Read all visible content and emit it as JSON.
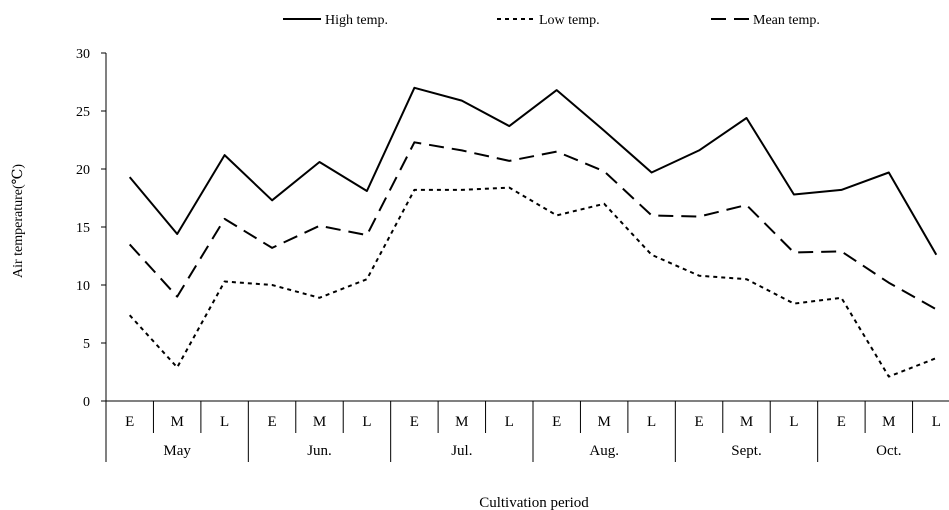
{
  "chart_data": {
    "type": "line",
    "xlabel": "Cultivation period",
    "ylabel": "Air temperature(℃)",
    "ylim": [
      0,
      30
    ],
    "yticks": [
      0,
      5,
      10,
      15,
      20,
      25,
      30
    ],
    "grid": false,
    "legend_position": "top",
    "categories": [
      "E",
      "M",
      "L",
      "E",
      "M",
      "L",
      "E",
      "M",
      "L",
      "E",
      "M",
      "L",
      "E",
      "M",
      "L",
      "E",
      "M",
      "L"
    ],
    "groups": [
      {
        "label": "May",
        "span": 3
      },
      {
        "label": "Jun.",
        "span": 3
      },
      {
        "label": "Jul.",
        "span": 3
      },
      {
        "label": "Aug.",
        "span": 3
      },
      {
        "label": "Sept.",
        "span": 3
      },
      {
        "label": "Oct.",
        "span": 3
      }
    ],
    "series": [
      {
        "name": "High temp.",
        "dash": "solid",
        "values": [
          19.3,
          14.4,
          21.2,
          17.3,
          20.6,
          18.1,
          27.0,
          25.9,
          23.7,
          26.8,
          23.3,
          19.7,
          21.6,
          24.4,
          17.8,
          18.2,
          19.7,
          12.6
        ]
      },
      {
        "name": "Low temp.",
        "dash": "short",
        "values": [
          7.4,
          2.9,
          10.3,
          10.0,
          8.9,
          10.5,
          18.2,
          18.2,
          18.4,
          16.0,
          17.0,
          12.6,
          10.8,
          10.5,
          8.4,
          8.9,
          2.1,
          3.7
        ]
      },
      {
        "name": "Mean temp.",
        "dash": "long",
        "values": [
          13.5,
          9.0,
          15.7,
          13.2,
          15.1,
          14.3,
          22.3,
          21.6,
          20.7,
          21.5,
          19.8,
          16.0,
          15.9,
          16.9,
          12.8,
          12.9,
          10.2,
          7.9
        ]
      }
    ]
  }
}
